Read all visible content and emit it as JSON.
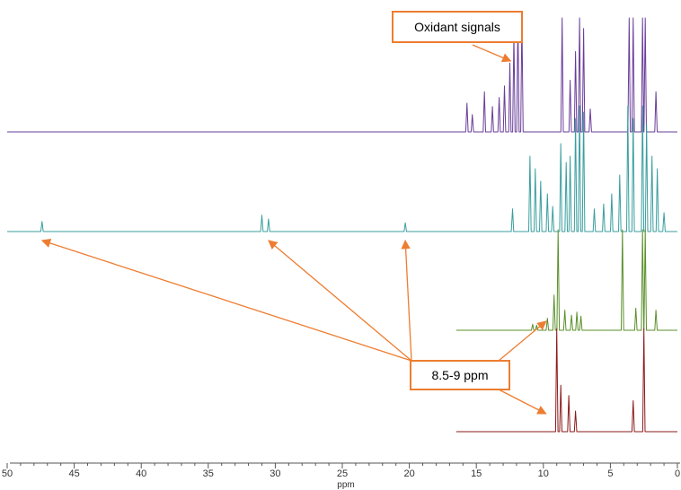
{
  "chart_data": {
    "type": "line",
    "title": "",
    "xlabel": "ppm",
    "ylabel": "",
    "x_reversed": true,
    "xlim": [
      0,
      50
    ],
    "x_ticks": [
      50,
      45,
      40,
      35,
      30,
      25,
      20,
      15,
      10,
      5,
      0
    ],
    "colors": {
      "oxidant": "#6a3d9a",
      "paramagnetic": "#3a9e9e",
      "reference_green": "#5a8f2a",
      "reference_red": "#8b1a1a",
      "annotation": "#ed7d31"
    },
    "series": [
      {
        "key": "oxidant",
        "x_range": [
          0,
          50
        ],
        "peaks": [
          {
            "x": 15.7,
            "h": 0.25
          },
          {
            "x": 15.3,
            "h": 0.15
          },
          {
            "x": 14.4,
            "h": 0.35
          },
          {
            "x": 13.8,
            "h": 0.22
          },
          {
            "x": 13.3,
            "h": 0.3
          },
          {
            "x": 12.9,
            "h": 0.4
          },
          {
            "x": 12.5,
            "h": 0.6
          },
          {
            "x": 12.2,
            "h": 0.85
          },
          {
            "x": 11.9,
            "h": 1.0
          },
          {
            "x": 11.6,
            "h": 1.0
          },
          {
            "x": 8.6,
            "h": 1.0
          },
          {
            "x": 8.0,
            "h": 0.45
          },
          {
            "x": 7.6,
            "h": 0.7
          },
          {
            "x": 7.3,
            "h": 1.0
          },
          {
            "x": 7.0,
            "h": 0.9
          },
          {
            "x": 6.5,
            "h": 0.2
          },
          {
            "x": 3.6,
            "h": 1.0
          },
          {
            "x": 3.3,
            "h": 1.0
          },
          {
            "x": 2.6,
            "h": 1.0
          },
          {
            "x": 2.4,
            "h": 1.0
          },
          {
            "x": 1.6,
            "h": 0.35
          }
        ]
      },
      {
        "key": "paramagnetic",
        "x_range": [
          0,
          50
        ],
        "peaks": [
          {
            "x": 47.4,
            "h": 0.08
          },
          {
            "x": 31.0,
            "h": 0.13
          },
          {
            "x": 30.5,
            "h": 0.1
          },
          {
            "x": 20.3,
            "h": 0.07
          },
          {
            "x": 12.3,
            "h": 0.18
          },
          {
            "x": 11.0,
            "h": 0.6
          },
          {
            "x": 10.6,
            "h": 0.5
          },
          {
            "x": 10.2,
            "h": 0.4
          },
          {
            "x": 9.7,
            "h": 0.3
          },
          {
            "x": 9.3,
            "h": 0.2
          },
          {
            "x": 8.7,
            "h": 0.7
          },
          {
            "x": 8.3,
            "h": 0.55
          },
          {
            "x": 8.0,
            "h": 0.6
          },
          {
            "x": 7.6,
            "h": 0.9
          },
          {
            "x": 7.3,
            "h": 1.0
          },
          {
            "x": 7.0,
            "h": 0.95
          },
          {
            "x": 6.2,
            "h": 0.18
          },
          {
            "x": 5.5,
            "h": 0.22
          },
          {
            "x": 4.9,
            "h": 0.3
          },
          {
            "x": 4.3,
            "h": 0.45
          },
          {
            "x": 3.7,
            "h": 1.0
          },
          {
            "x": 3.3,
            "h": 0.9
          },
          {
            "x": 2.6,
            "h": 1.0
          },
          {
            "x": 2.3,
            "h": 0.85
          },
          {
            "x": 1.9,
            "h": 0.6
          },
          {
            "x": 1.5,
            "h": 0.5
          },
          {
            "x": 1.0,
            "h": 0.15
          }
        ]
      },
      {
        "key": "reference_green",
        "x_range": [
          0,
          16.5
        ],
        "peaks": [
          {
            "x": 10.8,
            "h": 0.06
          },
          {
            "x": 10.5,
            "h": 0.05
          },
          {
            "x": 9.7,
            "h": 0.12
          },
          {
            "x": 9.2,
            "h": 0.35
          },
          {
            "x": 8.9,
            "h": 1.0
          },
          {
            "x": 8.4,
            "h": 0.2
          },
          {
            "x": 7.9,
            "h": 0.15
          },
          {
            "x": 7.5,
            "h": 0.18
          },
          {
            "x": 7.2,
            "h": 0.14
          },
          {
            "x": 4.1,
            "h": 1.0
          },
          {
            "x": 3.1,
            "h": 0.22
          },
          {
            "x": 2.6,
            "h": 1.0
          },
          {
            "x": 2.4,
            "h": 1.0
          },
          {
            "x": 1.6,
            "h": 0.2
          }
        ]
      },
      {
        "key": "reference_red",
        "x_range": [
          0,
          16.5
        ],
        "peaks": [
          {
            "x": 9.0,
            "h": 1.0
          },
          {
            "x": 8.7,
            "h": 0.45
          },
          {
            "x": 8.1,
            "h": 0.35
          },
          {
            "x": 7.6,
            "h": 0.2
          },
          {
            "x": 3.3,
            "h": 0.3
          },
          {
            "x": 2.5,
            "h": 1.0
          }
        ]
      }
    ],
    "annotations": [
      {
        "key": "oxidant",
        "text": "Oxidant signals",
        "points_to": [
          {
            "series": "oxidant",
            "x": 12.3
          }
        ]
      },
      {
        "key": "shift",
        "text": "8.5-9 ppm",
        "points_to": [
          {
            "series": "paramagnetic",
            "x": 47.4
          },
          {
            "series": "paramagnetic",
            "x": 30.5
          },
          {
            "series": "paramagnetic",
            "x": 20.3
          },
          {
            "series": "reference_green",
            "x": 9.0
          },
          {
            "series": "reference_red",
            "x": 9.0
          }
        ]
      }
    ]
  }
}
